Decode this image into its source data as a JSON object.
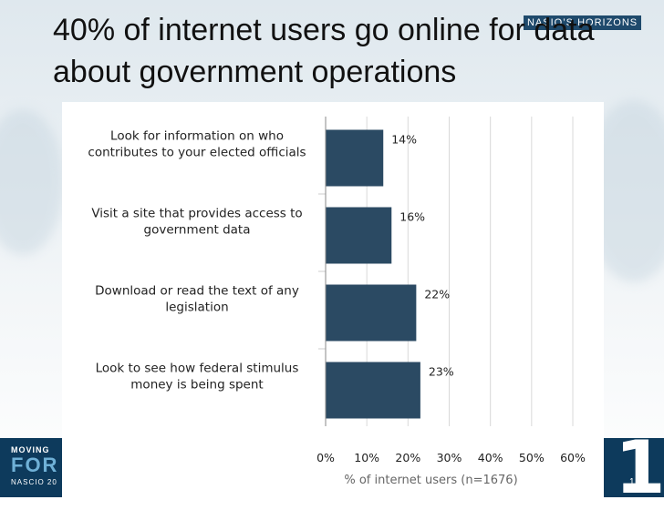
{
  "slide": {
    "title": "40% of internet users go online for data about government operations",
    "brand": "NASIO’S HORIZONS",
    "footer_line1": "MOVING",
    "footer_line2": "FOR",
    "footer_line3": "NASCIO 20",
    "page_number": "1"
  },
  "colors": {
    "bar": "#2b4a63",
    "grid": "#d9d9d9",
    "footer": "#0d3a5c"
  },
  "chart_data": {
    "type": "bar",
    "orientation": "horizontal",
    "categories": [
      "Look for information on who contributes to your elected officials",
      "Visit a site that provides access to government data",
      "Download or read the text of any legislation",
      "Look to see how federal stimulus money is being spent"
    ],
    "category_lines": [
      [
        "Look for information on who",
        "contributes to your elected officials"
      ],
      [
        "Visit a site that provides access to",
        "government data"
      ],
      [
        "Download or read the text of any",
        "legislation"
      ],
      [
        "Look to see how federal stimulus",
        "money is being spent"
      ]
    ],
    "values": [
      14,
      16,
      22,
      23
    ],
    "value_labels": [
      "14%",
      "16%",
      "22%",
      "23%"
    ],
    "xlim": [
      0,
      60
    ],
    "ticks": [
      0,
      10,
      20,
      30,
      40,
      50,
      60
    ],
    "tick_labels": [
      "0%",
      "10%",
      "20%",
      "30%",
      "40%",
      "50%",
      "60%"
    ],
    "xlabel": "% of internet users (n=1676)",
    "grid": true
  }
}
